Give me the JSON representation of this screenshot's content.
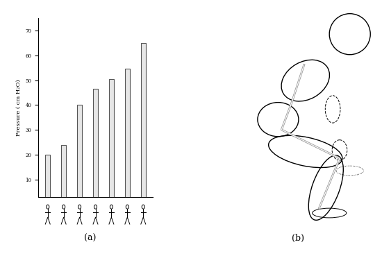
{
  "chart_data": {
    "type": "bar",
    "y_label": "Pressure ( cm H₂O)",
    "categories": [
      null,
      null,
      null,
      null,
      null,
      null,
      null
    ],
    "values": [
      20,
      24,
      40,
      46.5,
      50.5,
      54.5,
      65
    ],
    "color": "#e6e6e6",
    "ylim": [
      3,
      75
    ],
    "yticks": [
      10,
      20,
      30,
      40,
      50,
      60,
      70
    ],
    "grid": false
  },
  "panel_labels": [
    "(a)",
    "(b)"
  ]
}
